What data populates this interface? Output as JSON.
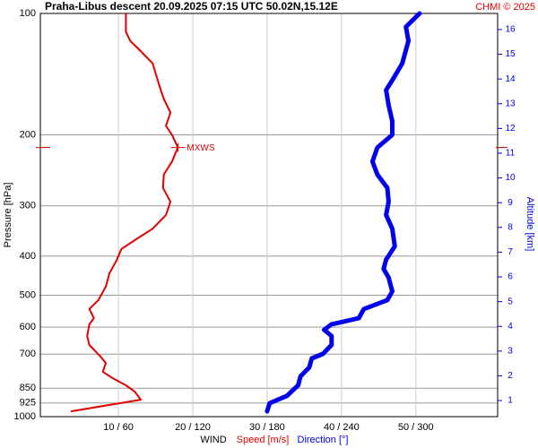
{
  "chart_data": {
    "type": "line",
    "title": "Praha-Libus   descent   20.09.2025 07:15 UTC   50.02N,15.12E",
    "credit": "CHMI © 2025",
    "y_label": "Pressure [hPa]",
    "y2_label": "Altitude [km]",
    "x_label": "WIND",
    "log_y": true,
    "grid": true,
    "ylim": [
      1000,
      100
    ],
    "yticks": [
      100,
      200,
      300,
      400,
      500,
      600,
      700,
      850,
      925,
      1000
    ],
    "xlim": [
      -0.5,
      61
    ],
    "xticks": [
      {
        "value": 10,
        "label": "10 / 60"
      },
      {
        "value": 20,
        "label": "20 / 120"
      },
      {
        "value": 30,
        "label": "30 / 180"
      },
      {
        "value": 40,
        "label": "40 / 240"
      },
      {
        "value": 50,
        "label": "50 / 300"
      }
    ],
    "x2lim": [
      -3,
      366
    ],
    "y2lim": [
      0.35,
      16.65
    ],
    "y2ticks": [
      1,
      2,
      3,
      4,
      5,
      6,
      7,
      8,
      9,
      10,
      11,
      12,
      13,
      14,
      15,
      16
    ],
    "series": [
      {
        "name": "Speed [m/s]",
        "color": "#e00000",
        "axis": "x",
        "pressure": [
          970,
          908,
          867,
          836,
          802,
          774,
          736,
          710,
          664,
          631,
          590,
          570,
          541,
          514,
          476,
          441,
          408,
          384,
          365,
          342,
          316,
          293,
          271,
          251,
          233,
          215,
          200,
          190,
          176,
          163,
          151,
          133,
          123,
          117,
          111,
          100
        ],
        "values": [
          3.7,
          13.0,
          12.2,
          11.0,
          9.2,
          7.9,
          8.3,
          7.6,
          6.1,
          5.8,
          6.1,
          6.7,
          6.1,
          7.3,
          8.3,
          8.8,
          9.8,
          10.4,
          12.2,
          14.6,
          16.4,
          17.0,
          16.0,
          16.1,
          17.2,
          18.0,
          17.2,
          16.4,
          17.0,
          16.1,
          15.5,
          14.6,
          12.8,
          11.6,
          11.0,
          11.0
        ]
      },
      {
        "name": "Direction [°]",
        "color": "#0000ee",
        "axis": "x2",
        "pressure": [
          970,
          926,
          888,
          836,
          794,
          755,
          717,
          699,
          664,
          631,
          609,
          590,
          570,
          541,
          514,
          489,
          452,
          430,
          408,
          378,
          342,
          316,
          293,
          271,
          251,
          233,
          215,
          200,
          185,
          169,
          155,
          143,
          133,
          117,
          108,
          100
        ],
        "values": [
          180,
          182,
          196,
          205,
          207,
          214,
          216,
          225,
          232,
          232,
          226,
          232,
          254,
          258,
          277,
          281,
          278,
          274,
          276,
          283,
          281,
          276,
          278,
          277,
          269,
          265,
          269,
          281,
          281,
          278,
          276,
          283,
          289,
          294,
          292,
          303
        ]
      }
    ],
    "annotation": {
      "text": "MXWS",
      "pressure": 215,
      "speed": 18.0
    }
  }
}
